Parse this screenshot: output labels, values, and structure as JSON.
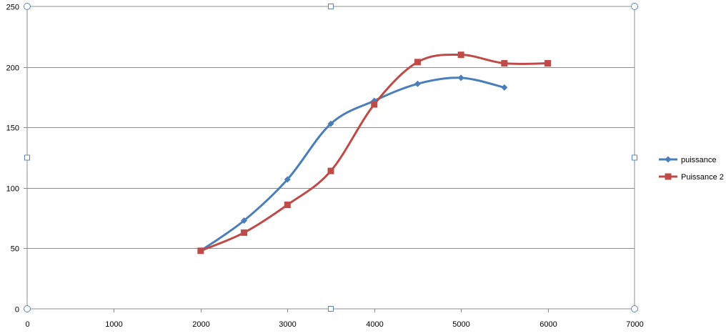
{
  "chart_data": {
    "type": "line",
    "smooth": true,
    "title": "",
    "xlabel": "",
    "ylabel": "",
    "xlim": [
      0,
      7000
    ],
    "ylim": [
      0,
      250
    ],
    "x_ticks": [
      0,
      1000,
      2000,
      3000,
      4000,
      5000,
      6000,
      7000
    ],
    "y_ticks": [
      0,
      50,
      100,
      150,
      200,
      250
    ],
    "x_tick_labels": [
      "0",
      "1000",
      "2000",
      "3000",
      "4000",
      "5000",
      "6000",
      "7000"
    ],
    "y_tick_labels": [
      "0",
      "50",
      "100",
      "150",
      "200",
      "250"
    ],
    "grid": "horizontal",
    "legend_position": "right",
    "series": [
      {
        "name": "puissance",
        "color": "#4a7ebb",
        "marker": "diamond",
        "x": [
          2000,
          2500,
          3000,
          3500,
          4000,
          4500,
          5000,
          5500
        ],
        "y": [
          48,
          73,
          107,
          153,
          172,
          186,
          191,
          183
        ]
      },
      {
        "name": "Puissance 2",
        "color": "#be4b48",
        "marker": "square",
        "x": [
          2000,
          2500,
          3000,
          3500,
          4000,
          4500,
          5000,
          5500,
          6000
        ],
        "y": [
          48,
          63,
          86,
          114,
          169,
          204,
          210,
          203,
          203
        ]
      }
    ]
  }
}
